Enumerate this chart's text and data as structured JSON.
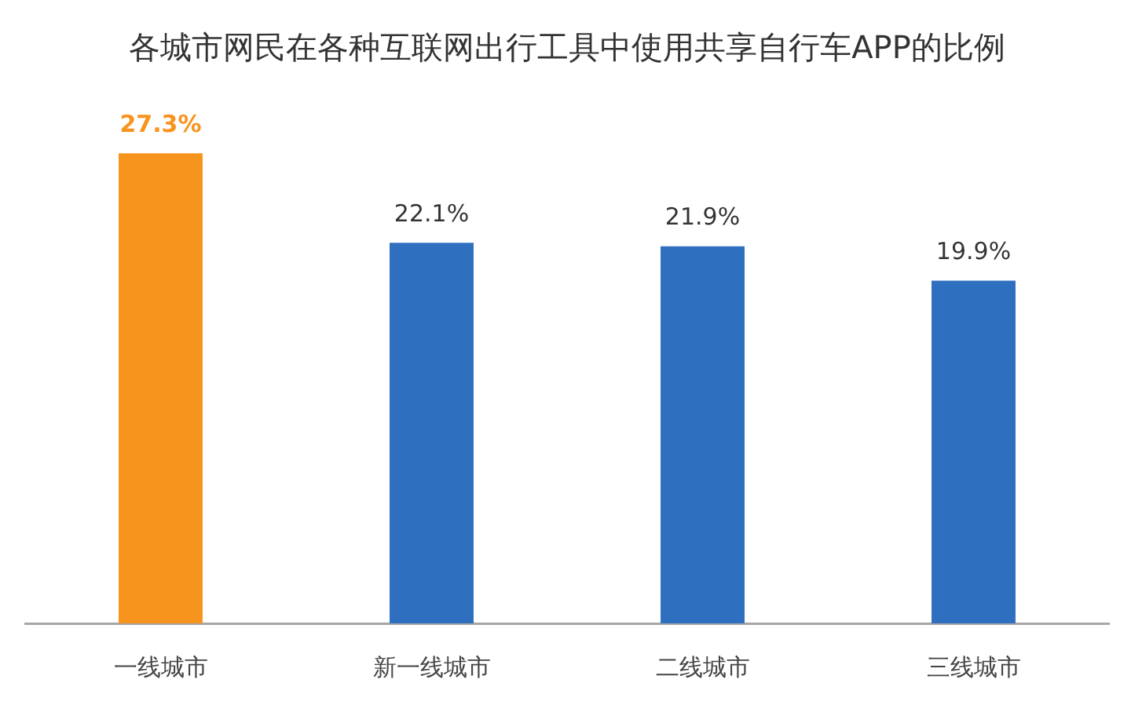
{
  "chart_data": {
    "type": "bar",
    "title": "各城市网民在各种互联网出行工具中使用共享自行车APP的比例",
    "categories": [
      "一线城市",
      "新一线城市",
      "二线城市",
      "三线城市"
    ],
    "values": [
      27.3,
      22.1,
      21.9,
      19.9
    ],
    "value_labels": [
      "27.3%",
      "22.1%",
      "21.9%",
      "19.9%"
    ],
    "colors": [
      "#f7941d",
      "#2e6fbf",
      "#2e6fbf",
      "#2e6fbf"
    ],
    "grid": false,
    "legend": false
  }
}
